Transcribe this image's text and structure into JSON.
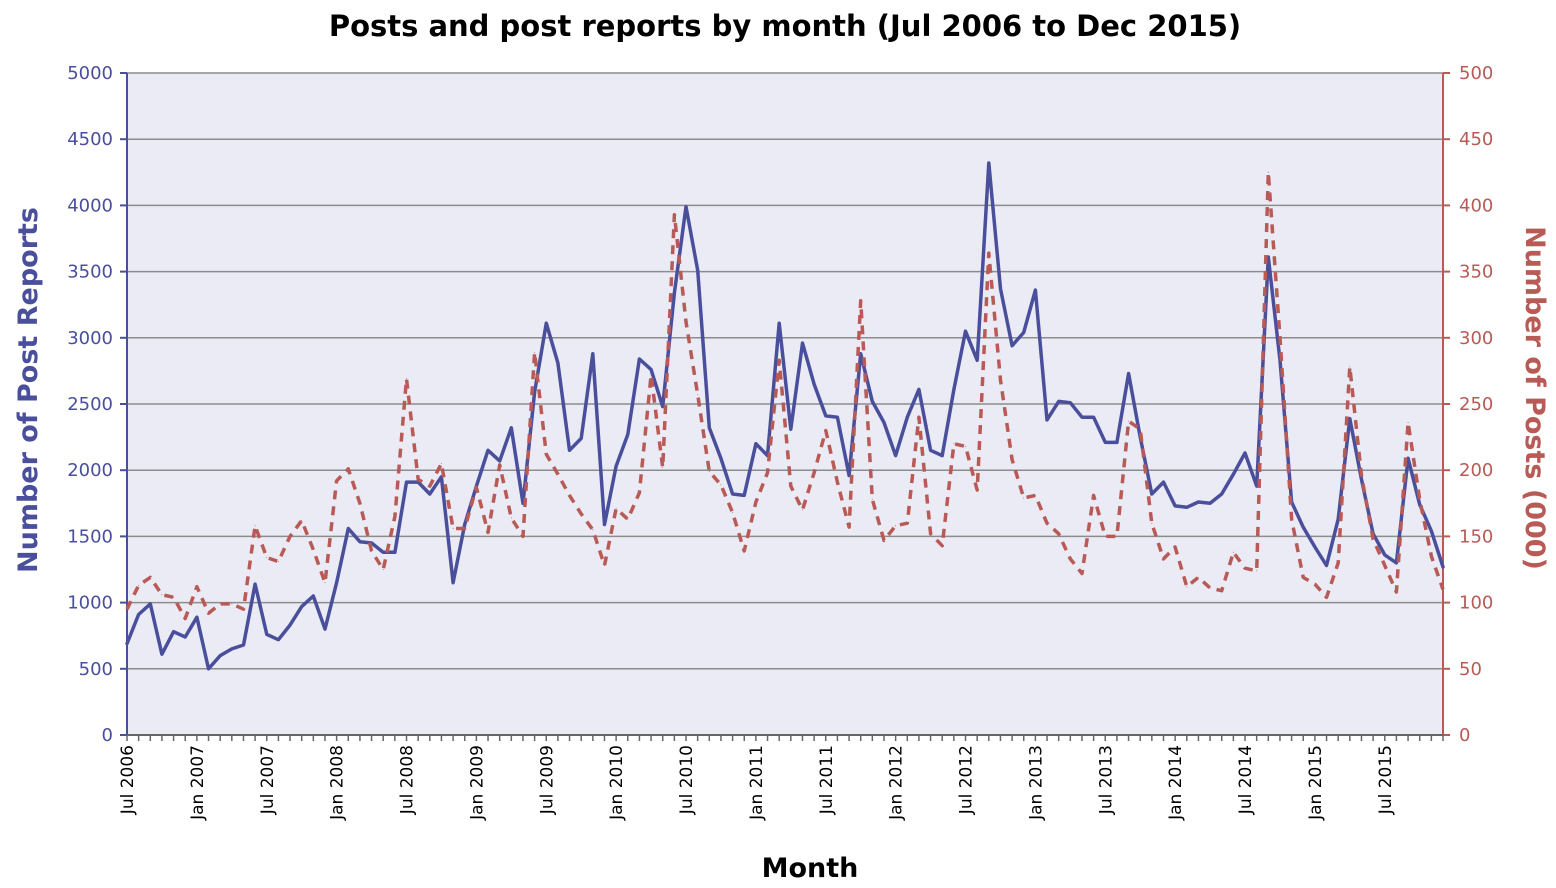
{
  "chart_data": {
    "type": "line",
    "title": "Posts and post reports by month (Jul 2006 to Dec 2015)",
    "xlabel": "Month",
    "ylabel_left": "Number of Post Reports",
    "ylabel_right": "Number of Posts (000)",
    "ylim_left": [
      0,
      5000
    ],
    "ylim_right": [
      0,
      500
    ],
    "yticks_left": [
      "0",
      "500",
      "1000",
      "1500",
      "2000",
      "2500",
      "3000",
      "3500",
      "4000",
      "4500",
      "5000"
    ],
    "yticks_right": [
      "0",
      "50",
      "100",
      "150",
      "200",
      "250",
      "300",
      "350",
      "400",
      "450",
      "500"
    ],
    "x_tick_labels": [
      "Jul 2006",
      "Jan 2007",
      "Jul 2007",
      "Jan 2008",
      "Jul 2008",
      "Jan 2009",
      "Jul 2009",
      "Jan 2010",
      "Jul 2010",
      "Jan 2011",
      "Jul 2011",
      "Jan 2012",
      "Jul 2012",
      "Jan 2013",
      "Jul 2013",
      "Jan 2014",
      "Jul 2014",
      "Jan 2015",
      "Jul 2015"
    ],
    "grid": true,
    "colors": {
      "reports": "#4a4f9c",
      "posts": "#b85a56",
      "plot_bg": "#ebebf5",
      "grid": "#8c8c8c"
    },
    "series": [
      {
        "axis": "left",
        "style": "solid",
        "values": [
          690,
          910,
          990,
          610,
          780,
          740,
          890,
          500,
          600,
          650,
          680,
          1140,
          760,
          720,
          830,
          970,
          1050,
          800,
          1150,
          1560,
          1460,
          1450,
          1380,
          1380,
          1910,
          1910,
          1820,
          1950,
          1150,
          1590,
          1880,
          2150,
          2070,
          2320,
          1750,
          2590,
          3110,
          2810,
          2150,
          2240,
          2880,
          1590,
          2030,
          2270,
          2840,
          2760,
          2480,
          3340,
          3990,
          3510,
          2320,
          2090,
          1820,
          1810,
          2200,
          2110,
          3110,
          2310,
          2960,
          2650,
          2410,
          2400,
          1960,
          2880,
          2520,
          2360,
          2110,
          2400,
          2610,
          2150,
          2110,
          2610,
          3050,
          2830,
          4320,
          3370,
          2940,
          3040,
          3360,
          2380,
          2520,
          2510,
          2400,
          2400,
          2210,
          2210,
          2730,
          2250,
          1820,
          1910,
          1730,
          1720,
          1760,
          1750,
          1820,
          1970,
          2130,
          1880,
          3610,
          2830,
          1760,
          1570,
          1420,
          1280,
          1630,
          2390,
          1930,
          1520,
          1360,
          1300,
          2090,
          1740,
          1540,
          1270
        ]
      },
      {
        "axis": "right",
        "style": "dashed",
        "values": [
          95,
          113,
          119,
          106,
          104,
          88,
          112,
          92,
          99,
          99,
          95,
          158,
          134,
          131,
          150,
          162,
          140,
          115,
          192,
          201,
          175,
          139,
          125,
          165,
          269,
          193,
          188,
          205,
          156,
          156,
          187,
          153,
          204,
          164,
          150,
          289,
          212,
          197,
          181,
          167,
          155,
          128,
          171,
          163,
          183,
          272,
          202,
          393,
          312,
          257,
          199,
          189,
          168,
          139,
          176,
          198,
          283,
          188,
          170,
          198,
          230,
          191,
          157,
          328,
          178,
          147,
          158,
          160,
          240,
          152,
          143,
          220,
          218,
          185,
          364,
          268,
          208,
          179,
          181,
          160,
          152,
          133,
          122,
          181,
          150,
          150,
          237,
          231,
          160,
          133,
          142,
          112,
          119,
          111,
          109,
          138,
          126,
          124,
          425,
          300,
          163,
          119,
          114,
          104,
          130,
          278,
          196,
          148,
          128,
          108,
          236,
          178,
          135,
          110
        ]
      }
    ]
  }
}
